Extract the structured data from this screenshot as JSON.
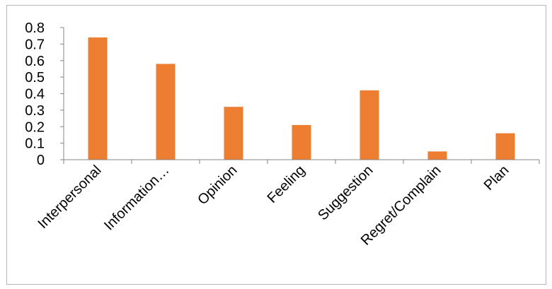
{
  "chart_data": {
    "type": "bar",
    "title": "",
    "xlabel": "",
    "ylabel": "",
    "categories": [
      "Interpersonal",
      "Information…",
      "Opinion",
      "Feeling",
      "Suggestion",
      "Regret/Complain",
      "Plan"
    ],
    "values": [
      0.74,
      0.58,
      0.32,
      0.21,
      0.42,
      0.05,
      0.16
    ],
    "ylim": [
      0,
      0.8
    ],
    "yticks": [
      "0",
      "0.1",
      "0.2",
      "0.3",
      "0.4",
      "0.5",
      "0.6",
      "0.7",
      "0.8"
    ],
    "grid": false,
    "legend": "none",
    "bar_color": "#ED7D31",
    "axis_color": "#868686"
  }
}
